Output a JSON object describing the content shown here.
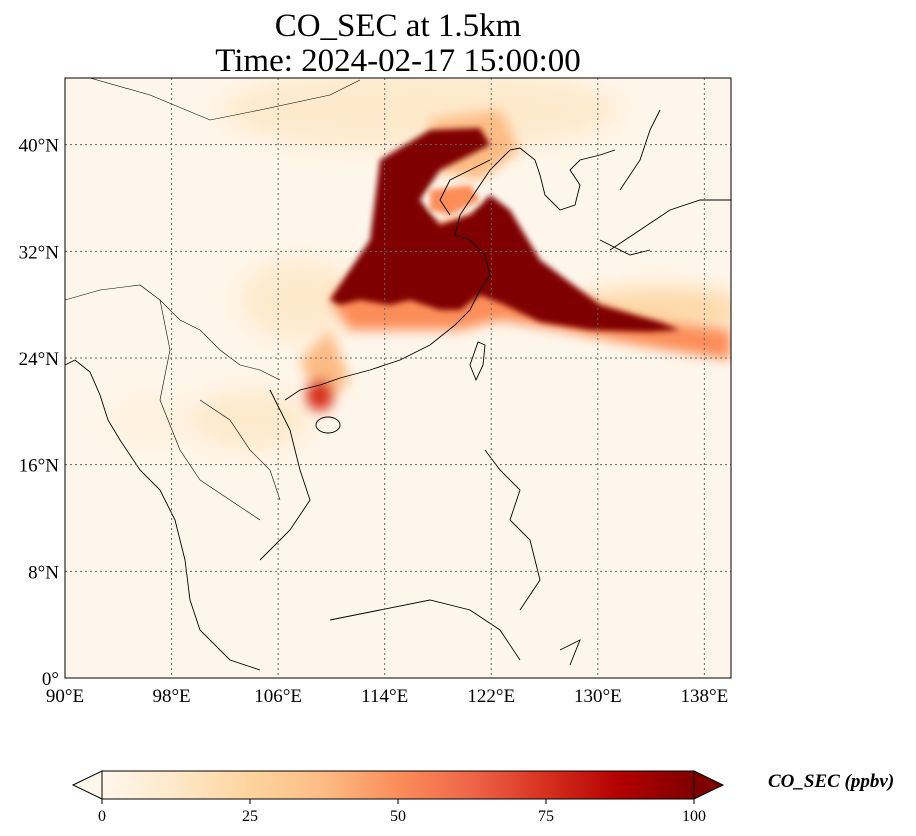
{
  "title": {
    "line1": "CO_SEC at 1.5km",
    "line2": "Time: 2024-02-17 15:00:00"
  },
  "map": {
    "lon_range": [
      90,
      140
    ],
    "lat_range": [
      0,
      45
    ],
    "lon_ticks": [
      "90°E",
      "98°E",
      "106°E",
      "114°E",
      "122°E",
      "130°E",
      "138°E"
    ],
    "lat_ticks": [
      "0°",
      "8°N",
      "16°N",
      "24°N",
      "32°N",
      "40°N"
    ],
    "gridlines": "dotted",
    "coastlines": true,
    "borders": true
  },
  "colorbar": {
    "label": "CO_SEC (ppbv)",
    "colormap": "OrRd",
    "min": 0,
    "max": 100,
    "ticks": [
      "0",
      "25",
      "50",
      "75",
      "100"
    ],
    "extend": "both",
    "colors": [
      "#fff7ec",
      "#fee8c8",
      "#fdd49e",
      "#fdbb84",
      "#fc8d59",
      "#ef6548",
      "#d7301f",
      "#b30000",
      "#7f0000"
    ]
  }
}
